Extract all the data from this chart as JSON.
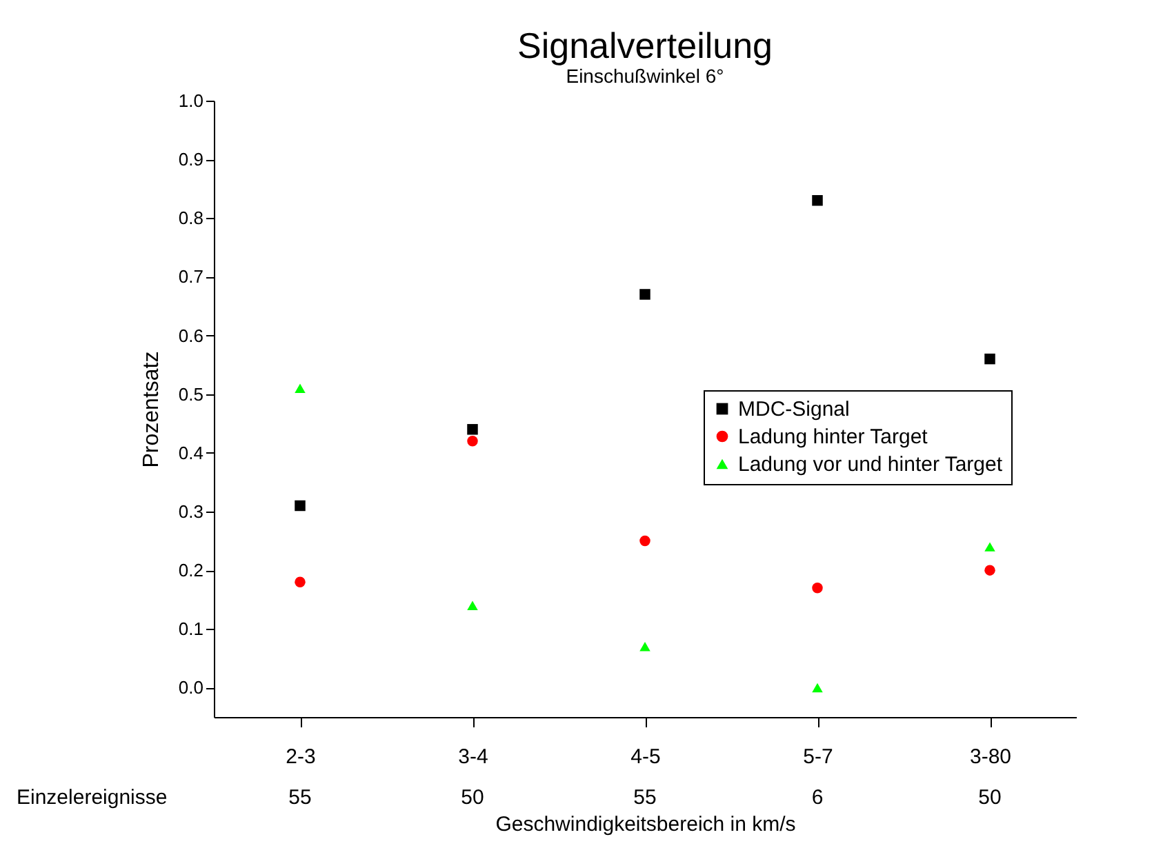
{
  "chart_data": {
    "type": "scatter",
    "title": "Signalverteilung",
    "subtitle": "Einschußwinkel 6°",
    "xlabel": "Geschwindigkeitsbereich in km/s",
    "ylabel": "Prozentsatz",
    "categories": [
      "2-3",
      "3-4",
      "4-5",
      "5-7",
      "3-80"
    ],
    "series": [
      {
        "name": "MDC-Signal",
        "color": "#000000",
        "marker": "square",
        "values": [
          0.31,
          0.44,
          0.67,
          0.83,
          0.56
        ]
      },
      {
        "name": "Ladung hinter Target",
        "color": "#ff0000",
        "marker": "circle",
        "values": [
          0.18,
          0.42,
          0.25,
          0.17,
          0.2
        ]
      },
      {
        "name": "Ladung vor und hinter Target",
        "color": "#00ff00",
        "marker": "triangle",
        "values": [
          0.51,
          0.14,
          0.07,
          0.0,
          0.24
        ]
      }
    ],
    "ylim": [
      -0.05,
      1.0
    ],
    "yticks": [
      {
        "value": 0,
        "label": "0.0"
      },
      0.1,
      0.2,
      0.3,
      0.4,
      0.5,
      0.6,
      0.7,
      0.8,
      0.9,
      {
        "value": 1,
        "label": "1.0"
      }
    ],
    "annotations": [
      "Einzelereignisse",
      "55",
      "50",
      "55",
      "6",
      "50"
    ],
    "grid": false,
    "legend": "right"
  }
}
